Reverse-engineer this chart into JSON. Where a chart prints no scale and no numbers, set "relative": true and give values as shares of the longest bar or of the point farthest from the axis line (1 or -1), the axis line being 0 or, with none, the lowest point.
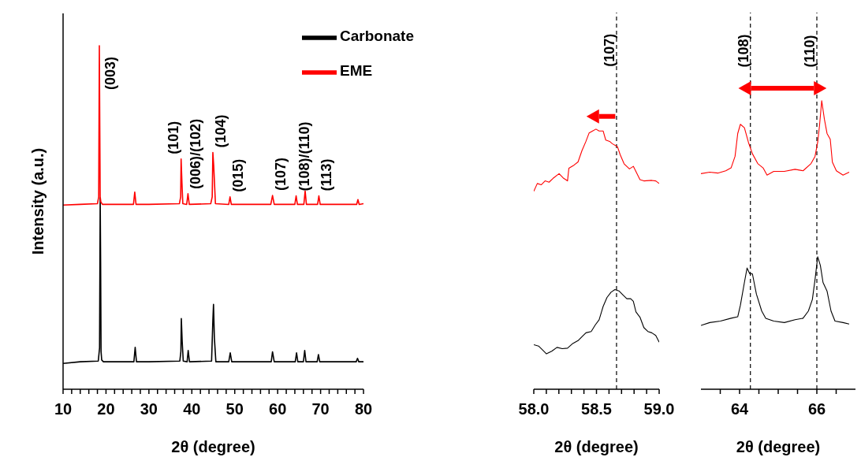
{
  "chart_data": [
    {
      "type": "line",
      "relative": true,
      "xlabel": "2θ (degree)",
      "ylabel": "Intensity (a.u.)",
      "legend": "top right",
      "xlim": [
        10,
        80
      ],
      "xticks": [
        10,
        {
          "value": 12,
          "label": null
        },
        {
          "value": 14,
          "label": null
        },
        {
          "value": 16,
          "label": null
        },
        {
          "value": 18,
          "label": null
        },
        20,
        {
          "value": 22,
          "label": null
        },
        {
          "value": 24,
          "label": null
        },
        {
          "value": 26,
          "label": null
        },
        {
          "value": 28,
          "label": null
        },
        30,
        {
          "value": 32,
          "label": null
        },
        {
          "value": 34,
          "label": null
        },
        {
          "value": 36,
          "label": null
        },
        {
          "value": 38,
          "label": null
        },
        40,
        {
          "value": 42,
          "label": null
        },
        {
          "value": 44,
          "label": null
        },
        {
          "value": 46,
          "label": null
        },
        {
          "value": 48,
          "label": null
        },
        50,
        {
          "value": 52,
          "label": null
        },
        {
          "value": 54,
          "label": null
        },
        {
          "value": 56,
          "label": null
        },
        {
          "value": 58,
          "label": null
        },
        60,
        {
          "value": 62,
          "label": null
        },
        {
          "value": 64,
          "label": null
        },
        {
          "value": 66,
          "label": null
        },
        {
          "value": 68,
          "label": null
        },
        70,
        {
          "value": 72,
          "label": null
        },
        {
          "value": 74,
          "label": null
        },
        {
          "value": 76,
          "label": null
        },
        {
          "value": 78,
          "label": null
        },
        80
      ],
      "series": [
        {
          "name": "Carbonate",
          "color": "#000000",
          "x": [
            10,
            14,
            18.2,
            18.5,
            18.65,
            18.75,
            18.85,
            19.0,
            19.4,
            26.5,
            26.8,
            27.1,
            30,
            37.2,
            37.45,
            37.55,
            37.75,
            38.0,
            38.9,
            39.15,
            39.45,
            44.6,
            44.9,
            45.05,
            45.25,
            45.6,
            48.6,
            48.95,
            49.3,
            58.5,
            58.8,
            59.2,
            64.1,
            64.4,
            64.7,
            66.0,
            66.3,
            66.6,
            69.2,
            69.5,
            69.8,
            78.3,
            78.6,
            78.9,
            80
          ],
          "values": [
            0.075,
            0.08,
            0.082,
            0.12,
            0.557,
            0.37,
            0.11,
            0.085,
            0.08,
            0.08,
            0.122,
            0.08,
            0.08,
            0.082,
            0.11,
            0.206,
            0.14,
            0.082,
            0.08,
            0.113,
            0.08,
            0.082,
            0.2,
            0.247,
            0.15,
            0.08,
            0.08,
            0.106,
            0.08,
            0.08,
            0.109,
            0.08,
            0.08,
            0.106,
            0.08,
            0.08,
            0.113,
            0.08,
            0.08,
            0.101,
            0.08,
            0.08,
            0.09,
            0.08,
            0.08
          ]
        },
        {
          "name": "EME",
          "color": "#ff0000",
          "x": [
            10,
            14,
            18.0,
            18.3,
            18.45,
            18.55,
            18.65,
            18.8,
            19.2,
            26.4,
            26.7,
            27.0,
            30,
            37.1,
            37.4,
            37.5,
            37.7,
            37.9,
            38.8,
            39.1,
            39.4,
            44.4,
            44.75,
            44.9,
            45.1,
            45.5,
            48.6,
            48.9,
            49.2,
            58.4,
            58.8,
            59.2,
            64.0,
            64.3,
            64.6,
            66.1,
            66.4,
            66.7,
            69.3,
            69.6,
            69.9,
            78.4,
            78.7,
            79.0,
            80
          ],
          "values": [
            0.536,
            0.538,
            0.54,
            0.56,
            1.0,
            0.77,
            0.56,
            0.545,
            0.538,
            0.538,
            0.574,
            0.538,
            0.538,
            0.54,
            0.56,
            0.67,
            0.6,
            0.54,
            0.538,
            0.569,
            0.538,
            0.54,
            0.56,
            0.689,
            0.65,
            0.54,
            0.538,
            0.56,
            0.538,
            0.538,
            0.564,
            0.538,
            0.538,
            0.563,
            0.538,
            0.538,
            0.577,
            0.538,
            0.538,
            0.563,
            0.538,
            0.538,
            0.552,
            0.538,
            0.54
          ]
        }
      ],
      "annotations": [
        {
          "text": "(003)",
          "x": 18.45,
          "y": 1.0
        },
        {
          "text": "(101)",
          "x": 37.5,
          "y": 0.67
        },
        {
          "text": "(006)/(102)",
          "x": 39.1,
          "y": 0.569
        },
        {
          "text": "(104)",
          "x": 44.9,
          "y": 0.689
        },
        {
          "text": "(015)",
          "x": 48.9,
          "y": 0.56
        },
        {
          "text": "(107)",
          "x": 58.8,
          "y": 0.564
        },
        {
          "text": "(108)/(110)",
          "x": 64.3,
          "y": 0.563
        },
        {
          "text": "(113)",
          "x": 69.6,
          "y": 0.563
        }
      ]
    },
    {
      "type": "line",
      "relative": true,
      "xlabel": "2θ (degree)",
      "tick_labels": "x",
      "xlim": [
        58.0,
        59.0
      ],
      "xticks": [
        {
          "value": 58.0,
          "label": "58.0"
        },
        {
          "value": 58.1,
          "label": null
        },
        {
          "value": 58.2,
          "label": null
        },
        {
          "value": 58.3,
          "label": null
        },
        {
          "value": 58.4,
          "label": null
        },
        58.5,
        {
          "value": 58.6,
          "label": null
        },
        {
          "value": 58.7,
          "label": null
        },
        {
          "value": 58.8,
          "label": null
        },
        {
          "value": 58.9,
          "label": null
        },
        {
          "value": 59.0,
          "label": "59.0"
        }
      ],
      "series": [
        {
          "color": "#000000",
          "x": [
            58.0,
            58.038,
            58.07,
            58.101,
            58.143,
            58.185,
            58.227,
            58.269,
            58.311,
            58.353,
            58.384,
            58.416,
            58.458,
            58.49,
            58.521,
            58.553,
            58.584,
            58.616,
            58.647,
            58.679,
            58.71,
            58.742,
            58.773,
            58.794,
            58.815,
            58.847,
            58.878,
            58.91,
            58.941,
            58.973,
            59.0
          ],
          "values": [
            0.171,
            0.166,
            0.151,
            0.136,
            0.146,
            0.161,
            0.156,
            0.158,
            0.176,
            0.187,
            0.202,
            0.217,
            0.222,
            0.247,
            0.267,
            0.318,
            0.353,
            0.373,
            0.383,
            0.378,
            0.363,
            0.348,
            0.348,
            0.338,
            0.297,
            0.277,
            0.237,
            0.222,
            0.217,
            0.207,
            0.181
          ]
        },
        {
          "color": "#ff0000",
          "x": [
            58.0,
            58.028,
            58.059,
            58.09,
            58.122,
            58.154,
            58.202,
            58.238,
            58.269,
            58.28,
            58.322,
            58.353,
            58.384,
            58.416,
            58.441,
            58.469,
            58.496,
            58.521,
            58.553,
            58.574,
            58.605,
            58.626,
            58.668,
            58.689,
            58.72,
            58.763,
            58.794,
            58.815,
            58.847,
            58.878,
            58.941,
            58.973,
            59.0
          ],
          "values": [
            0.761,
            0.791,
            0.786,
            0.801,
            0.796,
            0.811,
            0.829,
            0.811,
            0.801,
            0.85,
            0.862,
            0.874,
            0.917,
            0.953,
            0.985,
            0.993,
            1.0,
            0.993,
            0.993,
            0.958,
            0.953,
            0.944,
            0.932,
            0.902,
            0.867,
            0.847,
            0.857,
            0.837,
            0.806,
            0.801,
            0.803,
            0.801,
            0.791
          ]
        }
      ],
      "ref_lines": [
        {
          "axis": "x",
          "value": 58.66,
          "color": "#000000",
          "line_style": "dashed"
        }
      ],
      "annotations": [
        {
          "text": "(107)",
          "x": 58.66,
          "y": 1.24
        }
      ]
    },
    {
      "type": "line",
      "relative": true,
      "xlabel": "2θ (degree)",
      "tick_labels": "x",
      "xlim": [
        63,
        67
      ],
      "xticks": [
        {
          "value": 63.5,
          "label": null
        },
        64,
        {
          "value": 64.5,
          "label": null
        },
        {
          "value": 65,
          "label": null
        },
        {
          "value": 65.5,
          "label": null
        },
        66,
        {
          "value": 66.5,
          "label": null
        }
      ],
      "series": [
        {
          "color": "#000000",
          "x": [
            63.0,
            63.228,
            63.504,
            63.78,
            63.952,
            64.021,
            64.125,
            64.194,
            64.263,
            64.332,
            64.435,
            64.573,
            64.677,
            64.884,
            65.16,
            65.436,
            65.643,
            65.781,
            65.884,
            65.953,
            66.022,
            66.091,
            66.16,
            66.264,
            66.367,
            66.47,
            66.678,
            66.837
          ],
          "values": [
            0.221,
            0.231,
            0.236,
            0.246,
            0.251,
            0.291,
            0.37,
            0.42,
            0.4,
            0.4,
            0.33,
            0.271,
            0.246,
            0.236,
            0.231,
            0.241,
            0.246,
            0.271,
            0.311,
            0.38,
            0.459,
            0.429,
            0.37,
            0.34,
            0.271,
            0.236,
            0.231,
            0.226
          ]
        },
        {
          "color": "#ff0000",
          "x": [
            63.0,
            63.228,
            63.435,
            63.642,
            63.78,
            63.883,
            63.952,
            64.021,
            64.125,
            64.228,
            64.332,
            64.47,
            64.608,
            64.711,
            64.884,
            65.16,
            65.436,
            65.643,
            65.85,
            65.953,
            66.022,
            66.071,
            66.126,
            66.195,
            66.264,
            66.347,
            66.402,
            66.505,
            66.678,
            66.837
          ],
          "values": [
            0.747,
            0.752,
            0.749,
            0.757,
            0.767,
            0.807,
            0.886,
            0.918,
            0.906,
            0.856,
            0.816,
            0.782,
            0.767,
            0.742,
            0.755,
            0.755,
            0.762,
            0.757,
            0.782,
            0.807,
            0.856,
            0.916,
            1.0,
            0.936,
            0.886,
            0.866,
            0.787,
            0.757,
            0.742,
            0.752
          ]
        }
      ],
      "ref_lines": [
        {
          "axis": "x",
          "value": 64.28,
          "color": "#000000",
          "line_style": "dashed"
        },
        {
          "axis": "x",
          "value": 66.0,
          "color": "#000000",
          "line_style": "dashed"
        }
      ],
      "annotations": [
        {
          "text": "(108)",
          "x": 64.28,
          "y": 1.115
        },
        {
          "text": "(110)",
          "x": 66.0,
          "y": 1.115
        }
      ]
    }
  ]
}
